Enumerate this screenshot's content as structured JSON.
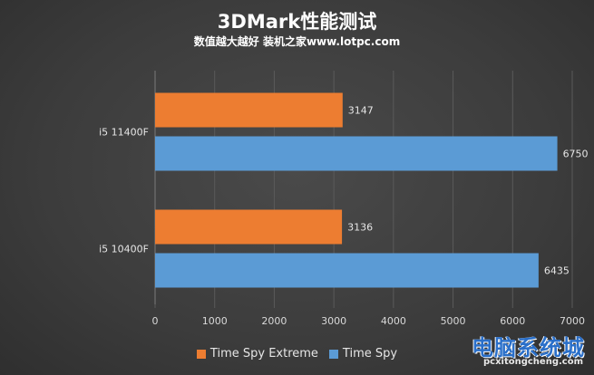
{
  "chart_data": {
    "type": "bar",
    "orientation": "horizontal",
    "title": "3DMark性能测试",
    "subtitle": "数值越大越好 装机之家www.lotpc.com",
    "categories": [
      "i5 11400F",
      "i5 10400F"
    ],
    "series": [
      {
        "name": "Time Spy Extreme",
        "color": "#ed7d31",
        "values": [
          3147,
          3136
        ]
      },
      {
        "name": "Time Spy",
        "color": "#5b9bd5",
        "values": [
          6750,
          6435
        ]
      }
    ],
    "xlim": [
      0,
      7000
    ],
    "xticks": [
      "0",
      "1000",
      "2000",
      "3000",
      "4000",
      "5000",
      "6000",
      "7000"
    ],
    "legend_position": "bottom",
    "grid": true
  },
  "watermark": {
    "text": "电脑系统城",
    "url": "pcxitongcheng.com"
  }
}
